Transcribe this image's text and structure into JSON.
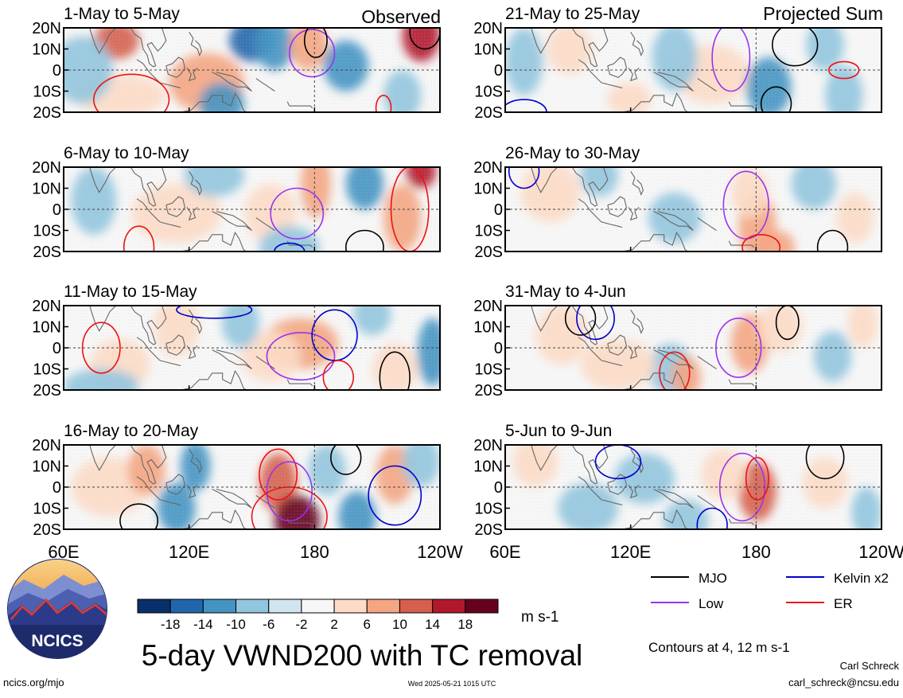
{
  "header": {
    "observed_label": "Observed",
    "projected_label": "Projected Sum"
  },
  "chart_data": {
    "type": "heatmap",
    "title": "5-day VWND200 with TC removal",
    "units": "m s-1",
    "x_ticks": [
      "60E",
      "120E",
      "180",
      "120W"
    ],
    "y_ticks": [
      "20N",
      "10N",
      "0",
      "10S",
      "20S"
    ],
    "xlim": [
      60,
      240
    ],
    "ylim": [
      -20,
      20
    ],
    "colorbar": {
      "tick_labels": [
        "-18",
        "-14",
        "-10",
        "-6",
        "-2",
        "2",
        "6",
        "10",
        "14",
        "18"
      ],
      "colors": [
        "#08306b",
        "#2166ac",
        "#4393c3",
        "#92c5de",
        "#d1e5f0",
        "#f7f7f7",
        "#fddbc7",
        "#f4a582",
        "#d6604d",
        "#b2182b",
        "#67001f"
      ]
    },
    "panels": [
      {
        "label": "1-May to 5-May",
        "group": "observed"
      },
      {
        "label": "6-May to 10-May",
        "group": "observed"
      },
      {
        "label": "11-May to 15-May",
        "group": "observed"
      },
      {
        "label": "16-May to 20-May",
        "group": "observed"
      },
      {
        "label": "21-May to 25-May",
        "group": "projected"
      },
      {
        "label": "26-May to 30-May",
        "group": "projected"
      },
      {
        "label": "31-May to 4-Jun",
        "group": "projected"
      },
      {
        "label": "5-Jun to 9-Jun",
        "group": "projected"
      }
    ],
    "legend": {
      "placement": "bottom-right",
      "items": [
        {
          "name": "MJO",
          "color": "#000000"
        },
        {
          "name": "Kelvin x2",
          "color": "#0000cc"
        },
        {
          "name": "Low",
          "color": "#9933ee"
        },
        {
          "name": "ER",
          "color": "#ee1111"
        }
      ]
    },
    "contour_note": "Contours at 4, 12 m s-1"
  },
  "footer": {
    "org_logo_text": "NCICS",
    "url": "ncics.org/mjo",
    "timestamp": "Wed 2025-05-21 1015 UTC",
    "author": "Carl Schreck",
    "email": "carl_schreck@ncsu.edu"
  }
}
